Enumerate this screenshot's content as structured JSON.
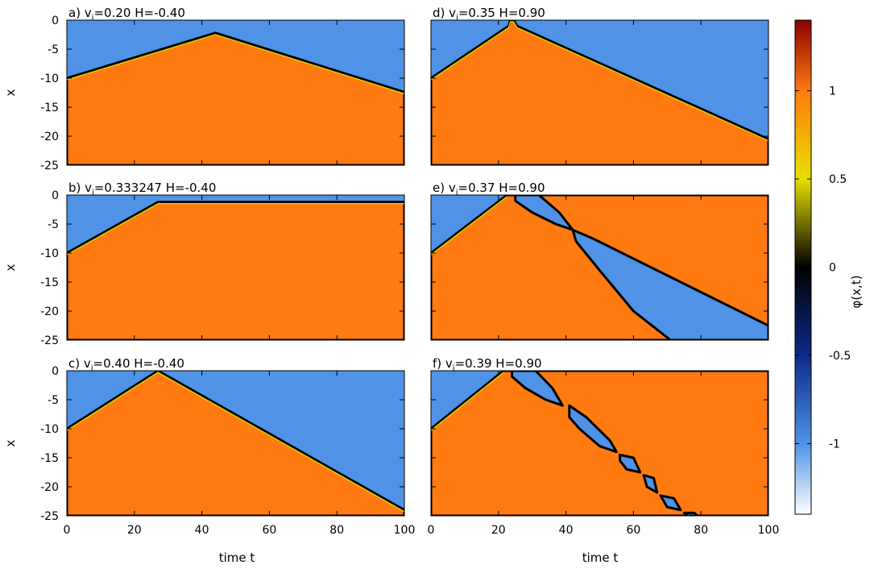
{
  "chart_data": {
    "type": "heatmap",
    "colorbar": {
      "label": "φ(x,t)",
      "range": [
        -1.4,
        1.4
      ],
      "ticks": [
        {
          "value": 1,
          "label": "1"
        },
        {
          "value": 0.5,
          "label": "0.5"
        },
        {
          "value": 0,
          "label": "0"
        },
        {
          "value": -0.5,
          "label": "-0.5"
        },
        {
          "value": -1,
          "label": "-1"
        }
      ],
      "stops": [
        {
          "v": -1.4,
          "color": "#ffffff"
        },
        {
          "v": -1.0,
          "color": "#4f92e6"
        },
        {
          "v": -0.5,
          "color": "#0c2a8a"
        },
        {
          "v": 0.0,
          "color": "#000000"
        },
        {
          "v": 0.5,
          "color": "#e8e000"
        },
        {
          "v": 1.0,
          "color": "#ff7a10"
        },
        {
          "v": 1.4,
          "color": "#8a0000"
        }
      ]
    },
    "xaxis": {
      "label": "time t",
      "range": [
        0,
        100
      ],
      "ticks": [
        "0",
        "20",
        "40",
        "60",
        "80",
        "100"
      ]
    },
    "yaxis": {
      "label": "x",
      "range": [
        -25,
        0
      ],
      "ticks": [
        "0",
        "-5",
        "-10",
        "-15",
        "-20",
        "-25"
      ]
    },
    "panels": [
      {
        "id": "a",
        "prefix": "a) v",
        "sub": "i",
        "params": "=0.20  H=-0.40",
        "region_value": 1.0,
        "background_value": -1.0,
        "boundary": [
          [
            0,
            -10
          ],
          [
            44,
            -2.2
          ],
          [
            100,
            -12.4
          ]
        ]
      },
      {
        "id": "b",
        "prefix": "b) v",
        "sub": "i",
        "params": "=0.333247  H=-0.40",
        "region_value": 1.0,
        "background_value": -1.0,
        "boundary": [
          [
            0,
            -10
          ],
          [
            27,
            -1.2
          ],
          [
            100,
            -1.2
          ]
        ]
      },
      {
        "id": "c",
        "prefix": "c) v",
        "sub": "i",
        "params": "=0.40  H=-0.40",
        "region_value": 1.0,
        "background_value": -1.0,
        "boundary": [
          [
            0,
            -10
          ],
          [
            27,
            0
          ],
          [
            100,
            -24
          ]
        ]
      },
      {
        "id": "d",
        "prefix": "d) v",
        "sub": "i",
        "params": "=0.35  H=0.90",
        "region_value": 1.0,
        "background_value": -1.0,
        "boundary": [
          [
            0,
            -10
          ],
          [
            23,
            -1
          ],
          [
            23.5,
            0
          ],
          [
            24.5,
            0
          ],
          [
            25.5,
            -1
          ],
          [
            100,
            -20.5
          ]
        ]
      },
      {
        "id": "e",
        "prefix": "e) v",
        "sub": "i",
        "params": "=0.37  H=0.90",
        "region_value": 1.0,
        "background_value": -1.0,
        "boundary": [
          [
            0,
            -10
          ],
          [
            22.5,
            0
          ]
        ],
        "bubbles": [
          {
            "poly": [
              [
                25,
                0
              ],
              [
                32,
                0
              ],
              [
                38,
                -3
              ],
              [
                42,
                -6
              ],
              [
                37,
                -5
              ],
              [
                30,
                -3
              ],
              [
                25,
                -1
              ]
            ]
          }
        ],
        "strips": [
          {
            "poly": [
              [
                42,
                -6
              ],
              [
                48,
                -7.5
              ],
              [
                100,
                -22.5
              ],
              [
                100,
                -25
              ],
              [
                71,
                -25
              ],
              [
                60,
                -20
              ],
              [
                50,
                -13
              ],
              [
                43,
                -8
              ]
            ]
          }
        ]
      },
      {
        "id": "f",
        "prefix": "f) v",
        "sub": "i",
        "params": "=0.39  H=0.90",
        "region_value": 1.0,
        "background_value": -1.0,
        "boundary": [
          [
            0,
            -10
          ],
          [
            21.5,
            0
          ]
        ],
        "bubbles": [
          {
            "poly": [
              [
                24,
                0
              ],
              [
                31,
                0
              ],
              [
                36,
                -3
              ],
              [
                39,
                -6
              ],
              [
                34,
                -5
              ],
              [
                28,
                -3
              ],
              [
                24,
                -1
              ]
            ]
          },
          {
            "poly": [
              [
                41,
                -6
              ],
              [
                46,
                -8
              ],
              [
                53,
                -12
              ],
              [
                55,
                -14
              ],
              [
                50,
                -13
              ],
              [
                44,
                -10
              ],
              [
                41,
                -8
              ]
            ]
          },
          {
            "poly": [
              [
                56,
                -14.5
              ],
              [
                60,
                -15
              ],
              [
                62,
                -17.5
              ],
              [
                58,
                -17
              ],
              [
                56,
                -15.5
              ]
            ]
          },
          {
            "poly": [
              [
                63,
                -18
              ],
              [
                66,
                -18.5
              ],
              [
                67,
                -21
              ],
              [
                64,
                -20
              ]
            ]
          },
          {
            "poly": [
              [
                68,
                -21.5
              ],
              [
                72,
                -22
              ],
              [
                74,
                -24
              ],
              [
                70,
                -23.5
              ]
            ]
          },
          {
            "poly": [
              [
                75,
                -24.5
              ],
              [
                78,
                -24.5
              ],
              [
                79,
                -25
              ],
              [
                76,
                -25
              ]
            ]
          }
        ]
      }
    ]
  }
}
